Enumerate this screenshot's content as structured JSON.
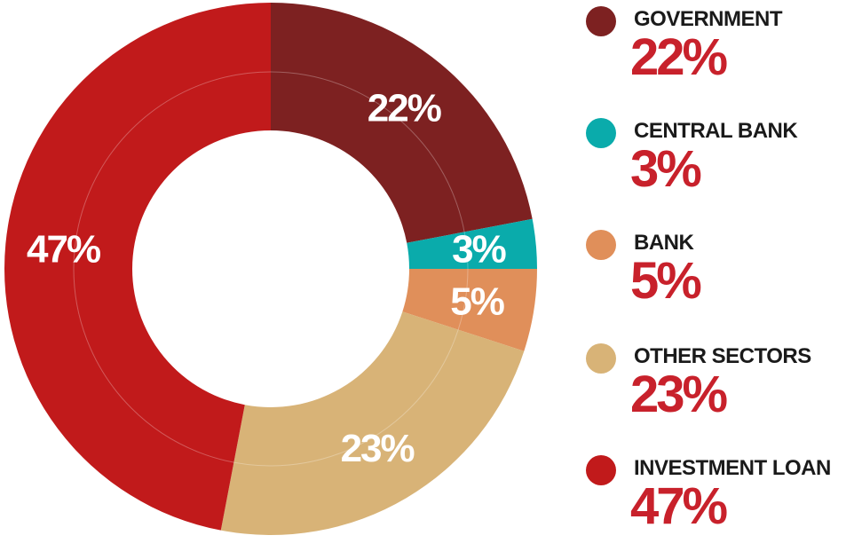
{
  "chart_data": {
    "type": "pie",
    "variant": "donut",
    "legend_position": "right",
    "slices": [
      {
        "name": "GOVERNMENT",
        "value": 22,
        "label": "22%",
        "color": "#7d2121"
      },
      {
        "name": "CENTRAL BANK",
        "value": 3,
        "label": "3%",
        "color": "#0aabab"
      },
      {
        "name": "BANK",
        "value": 5,
        "label": "5%",
        "color": "#e08f5a"
      },
      {
        "name": "OTHER SECTORS",
        "value": 23,
        "label": "23%",
        "color": "#d8b377"
      },
      {
        "name": "INVESTMENT LOAN",
        "value": 47,
        "label": "47%",
        "color": "#c11a1b"
      }
    ]
  },
  "legend": {
    "items": [
      {
        "name": "GOVERNMENT",
        "value": "22%",
        "color": "#7d2121"
      },
      {
        "name": "CENTRAL BANK",
        "value": "3%",
        "color": "#0aabab"
      },
      {
        "name": "BANK",
        "value": "5%",
        "color": "#e08f5a"
      },
      {
        "name": "OTHER SECTORS",
        "value": "23%",
        "color": "#d8b377"
      },
      {
        "name": "INVESTMENT LOAN",
        "value": "47%",
        "color": "#c11a1b"
      }
    ]
  }
}
